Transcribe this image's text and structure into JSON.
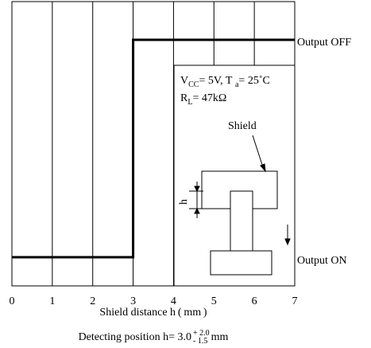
{
  "chart_data": {
    "type": "line",
    "title": "",
    "xlabel": "Shield distance h ( mm )",
    "ylabel": "",
    "xlim": [
      0,
      7
    ],
    "x_ticks": [
      "0",
      "1",
      "2",
      "3",
      "4",
      "5",
      "6",
      "7"
    ],
    "grid": true,
    "series": [
      {
        "x": [
          0,
          3,
          3,
          7
        ],
        "y": [
          "Output ON",
          "Output ON",
          "Output OFF",
          "Output OFF"
        ]
      }
    ],
    "y_levels": {
      "off": "Output OFF",
      "on": "Output ON"
    }
  },
  "conditions": {
    "vcc_symbol": "V",
    "vcc_sub": "CC",
    "vcc_value": "= 5V, T",
    "ta_sub": "a",
    "ta_value": "= 25˚C",
    "rl_symbol": "R",
    "rl_sub": "L",
    "rl_value": "= 47kΩ"
  },
  "diagram": {
    "shield_label": "Shield",
    "h_label": "h"
  },
  "footnote": {
    "prefix": "Detecting position h= ",
    "nominal": "3.0",
    "plus": "+ 2.0",
    "minus": "- 1.5",
    "unit": "mm"
  }
}
